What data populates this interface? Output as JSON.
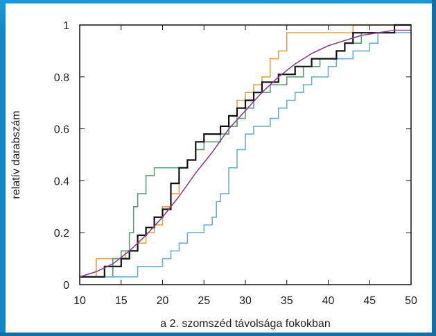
{
  "chart_data": {
    "type": "line",
    "title": "",
    "xlabel": "a 2. szomszéd távolsága fokokban",
    "ylabel": "relatív darabszám",
    "xlim": [
      10,
      50
    ],
    "ylim": [
      0,
      1
    ],
    "x_ticks": [
      "10",
      "15",
      "20",
      "25",
      "30",
      "35",
      "40",
      "45",
      "50"
    ],
    "y_ticks": [
      "0",
      "0.2",
      "0.4",
      "0.6",
      "0.8",
      "1"
    ],
    "grid": false,
    "legend": "none",
    "series": [
      {
        "color": "#e8a040",
        "step": true,
        "points": [
          [
            10,
            0.03
          ],
          [
            12,
            0.1
          ],
          [
            15,
            0.1
          ],
          [
            15.5,
            0.13
          ],
          [
            17,
            0.16
          ],
          [
            18,
            0.2
          ],
          [
            19,
            0.23
          ],
          [
            20,
            0.3
          ],
          [
            21,
            0.35
          ],
          [
            22,
            0.45
          ],
          [
            23,
            0.48
          ],
          [
            24,
            0.52
          ],
          [
            25,
            0.55
          ],
          [
            27,
            0.58
          ],
          [
            28,
            0.61
          ],
          [
            29,
            0.71
          ],
          [
            30,
            0.74
          ],
          [
            31,
            0.77
          ],
          [
            32,
            0.8
          ],
          [
            33,
            0.87
          ],
          [
            34,
            0.9
          ],
          [
            35,
            0.97
          ],
          [
            43,
            1.0
          ],
          [
            50,
            1.0
          ]
        ]
      },
      {
        "color": "#5a9e78",
        "step": true,
        "points": [
          [
            10,
            0.03
          ],
          [
            13,
            0.03
          ],
          [
            14,
            0.1
          ],
          [
            15,
            0.13
          ],
          [
            16,
            0.2
          ],
          [
            16.5,
            0.3
          ],
          [
            17,
            0.35
          ],
          [
            18,
            0.42
          ],
          [
            19,
            0.45
          ],
          [
            23,
            0.48
          ],
          [
            24,
            0.52
          ],
          [
            25,
            0.55
          ],
          [
            27,
            0.58
          ],
          [
            28,
            0.61
          ],
          [
            29,
            0.64
          ],
          [
            30,
            0.68
          ],
          [
            31,
            0.74
          ],
          [
            33,
            0.77
          ],
          [
            35,
            0.8
          ],
          [
            37,
            0.84
          ],
          [
            39,
            0.87
          ],
          [
            41,
            0.9
          ],
          [
            42,
            0.93
          ],
          [
            44,
            0.97
          ],
          [
            50,
            0.97
          ]
        ]
      },
      {
        "color": "#6aaed6",
        "step": true,
        "points": [
          [
            10,
            0.03
          ],
          [
            16.5,
            0.03
          ],
          [
            17,
            0.07
          ],
          [
            20,
            0.1
          ],
          [
            21,
            0.13
          ],
          [
            22,
            0.16
          ],
          [
            23,
            0.2
          ],
          [
            25,
            0.23
          ],
          [
            26,
            0.26
          ],
          [
            26.5,
            0.32
          ],
          [
            27,
            0.35
          ],
          [
            28,
            0.45
          ],
          [
            29,
            0.52
          ],
          [
            30,
            0.58
          ],
          [
            31,
            0.61
          ],
          [
            33,
            0.64
          ],
          [
            34,
            0.68
          ],
          [
            35,
            0.71
          ],
          [
            36,
            0.74
          ],
          [
            37,
            0.77
          ],
          [
            38,
            0.8
          ],
          [
            40,
            0.84
          ],
          [
            41,
            0.87
          ],
          [
            43,
            0.9
          ],
          [
            45,
            0.93
          ],
          [
            46,
            0.97
          ],
          [
            50,
            0.97
          ]
        ]
      },
      {
        "color": "#111111",
        "step": true,
        "points": [
          [
            10,
            0.03
          ],
          [
            13,
            0.07
          ],
          [
            15,
            0.1
          ],
          [
            16,
            0.13
          ],
          [
            17,
            0.19
          ],
          [
            18,
            0.22
          ],
          [
            19,
            0.26
          ],
          [
            20,
            0.29
          ],
          [
            21,
            0.39
          ],
          [
            22,
            0.45
          ],
          [
            23,
            0.48
          ],
          [
            24,
            0.55
          ],
          [
            25,
            0.58
          ],
          [
            27,
            0.61
          ],
          [
            28,
            0.65
          ],
          [
            29,
            0.68
          ],
          [
            30,
            0.71
          ],
          [
            31,
            0.74
          ],
          [
            32,
            0.78
          ],
          [
            34,
            0.81
          ],
          [
            36,
            0.84
          ],
          [
            38,
            0.87
          ],
          [
            41,
            0.9
          ],
          [
            42,
            0.93
          ],
          [
            43,
            0.97
          ],
          [
            48,
            1.0
          ],
          [
            50,
            1.0
          ]
        ]
      },
      {
        "color": "#8a3f8f",
        "step": false,
        "points": [
          [
            10,
            0.03
          ],
          [
            12,
            0.05
          ],
          [
            14,
            0.08
          ],
          [
            16,
            0.13
          ],
          [
            18,
            0.19
          ],
          [
            20,
            0.26
          ],
          [
            22,
            0.34
          ],
          [
            24,
            0.43
          ],
          [
            26,
            0.51
          ],
          [
            28,
            0.6
          ],
          [
            30,
            0.67
          ],
          [
            32,
            0.74
          ],
          [
            34,
            0.8
          ],
          [
            36,
            0.85
          ],
          [
            38,
            0.89
          ],
          [
            40,
            0.92
          ],
          [
            42,
            0.94
          ],
          [
            44,
            0.96
          ],
          [
            46,
            0.97
          ],
          [
            48,
            0.98
          ],
          [
            50,
            0.98
          ]
        ]
      }
    ]
  }
}
